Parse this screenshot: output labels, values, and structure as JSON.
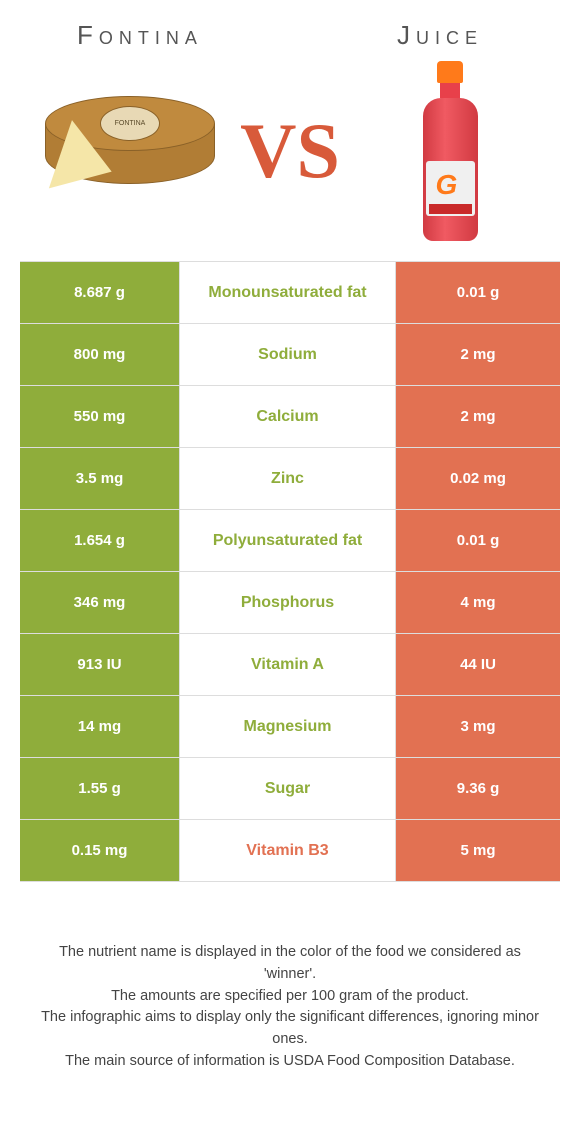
{
  "left_food": {
    "title": "Fontina",
    "image_label": "FONTINA"
  },
  "right_food": {
    "title": "Juice"
  },
  "vs_text": "VS",
  "colors": {
    "left": "#8fad3b",
    "right": "#e27152",
    "left_text": "#8fad3b",
    "right_text": "#e27152"
  },
  "rows": [
    {
      "left": "8.687 g",
      "label": "Monounsaturated fat",
      "right": "0.01 g",
      "winner": "left"
    },
    {
      "left": "800 mg",
      "label": "Sodium",
      "right": "2 mg",
      "winner": "left"
    },
    {
      "left": "550 mg",
      "label": "Calcium",
      "right": "2 mg",
      "winner": "left"
    },
    {
      "left": "3.5 mg",
      "label": "Zinc",
      "right": "0.02 mg",
      "winner": "left"
    },
    {
      "left": "1.654 g",
      "label": "Polyunsaturated fat",
      "right": "0.01 g",
      "winner": "left"
    },
    {
      "left": "346 mg",
      "label": "Phosphorus",
      "right": "4 mg",
      "winner": "left"
    },
    {
      "left": "913 IU",
      "label": "Vitamin A",
      "right": "44 IU",
      "winner": "left"
    },
    {
      "left": "14 mg",
      "label": "Magnesium",
      "right": "3 mg",
      "winner": "left"
    },
    {
      "left": "1.55 g",
      "label": "Sugar",
      "right": "9.36 g",
      "winner": "left"
    },
    {
      "left": "0.15 mg",
      "label": "Vitamin B3",
      "right": "5 mg",
      "winner": "right"
    }
  ],
  "footer_lines": [
    "The nutrient name is displayed in the color of the food we considered as 'winner'.",
    "The amounts are specified per 100 gram of the product.",
    "The infographic aims to display only the significant differences, ignoring minor ones.",
    "The main source of information is USDA Food Composition Database."
  ]
}
